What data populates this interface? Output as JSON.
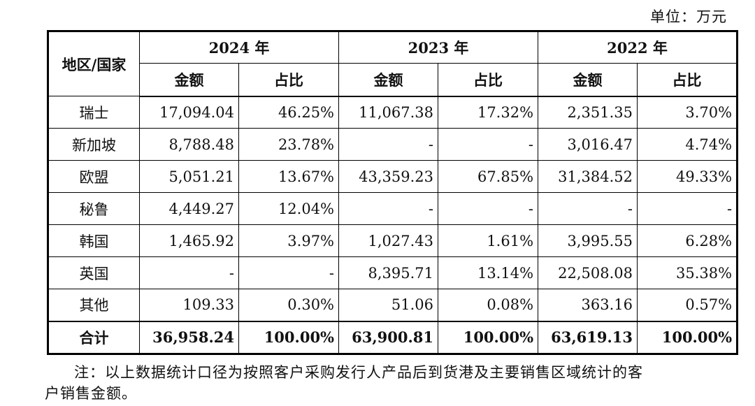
{
  "unit_label": "单位：万元",
  "header": {
    "region_col": "地区/国家",
    "years": [
      "2024 年",
      "2023 年",
      "2022 年"
    ],
    "amount_label": "金额",
    "ratio_label": "占比"
  },
  "rows": [
    {
      "region": "瑞士",
      "values": [
        "17,094.04",
        "46.25%",
        "11,067.38",
        "17.32%",
        "2,351.35",
        "3.70%"
      ]
    },
    {
      "region": "新加坡",
      "values": [
        "8,788.48",
        "23.78%",
        "-",
        "-",
        "3,016.47",
        "4.74%"
      ]
    },
    {
      "region": "欧盟",
      "values": [
        "5,051.21",
        "13.67%",
        "43,359.23",
        "67.85%",
        "31,384.52",
        "49.33%"
      ]
    },
    {
      "region": "秘鲁",
      "values": [
        "4,449.27",
        "12.04%",
        "-",
        "-",
        "-",
        "-"
      ]
    },
    {
      "region": "韩国",
      "values": [
        "1,465.92",
        "3.97%",
        "1,027.43",
        "1.61%",
        "3,995.55",
        "6.28%"
      ]
    },
    {
      "region": "英国",
      "values": [
        "-",
        "-",
        "8,395.71",
        "13.14%",
        "22,508.08",
        "35.38%"
      ]
    },
    {
      "region": "其他",
      "values": [
        "109.33",
        "0.30%",
        "51.06",
        "0.08%",
        "363.16",
        "0.57%"
      ]
    }
  ],
  "total": {
    "region": "合计",
    "values": [
      "36,958.24",
      "100.00%",
      "63,900.81",
      "100.00%",
      "63,619.13",
      "100.00%"
    ]
  },
  "note_line1": "注：以上数据统计口径为按照客户采购发行人产品后到货港及主要销售区域统计的客",
  "note_line2": "户销售金额。"
}
